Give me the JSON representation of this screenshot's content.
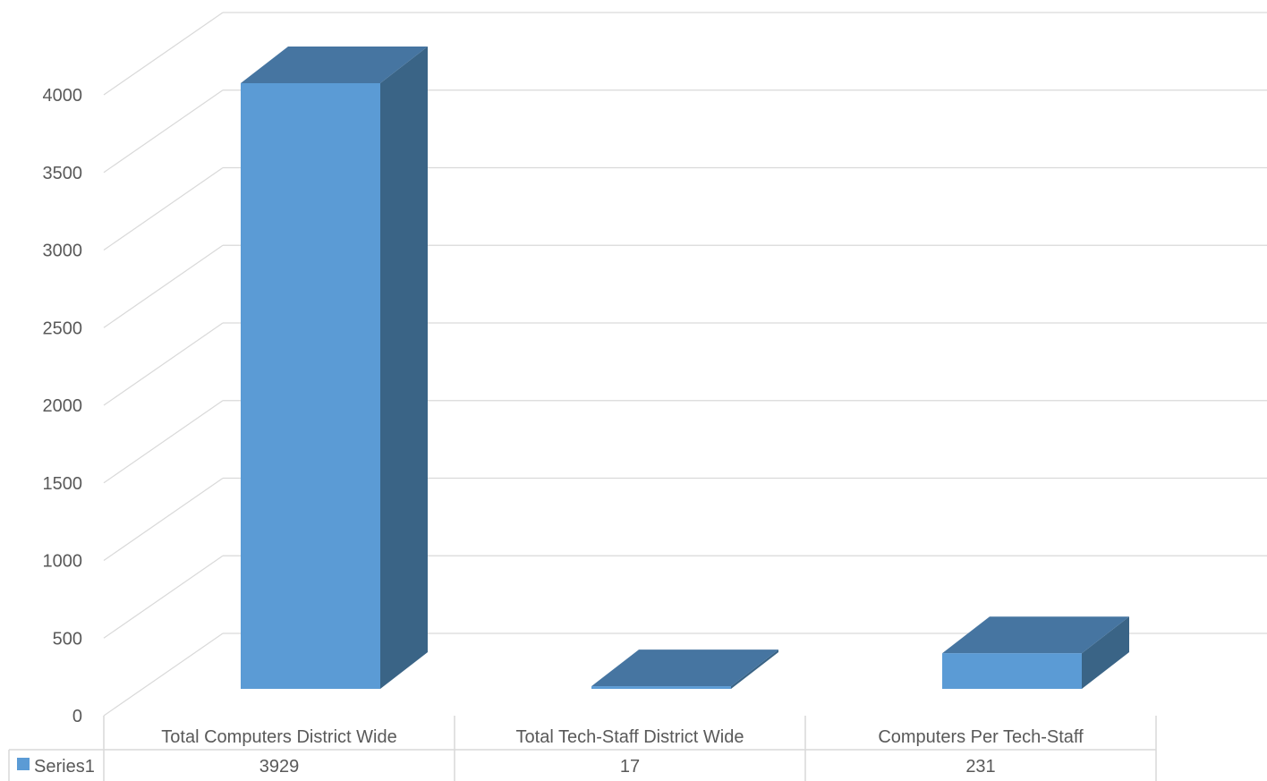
{
  "chart_data": {
    "type": "bar",
    "style": "3d-column-with-data-table",
    "categories": [
      "Total Computers District Wide",
      "Total Tech-Staff District Wide",
      "Computers Per Tech-Staff"
    ],
    "series": [
      {
        "name": "Series1",
        "values": [
          3929,
          17,
          231
        ],
        "color": "#5b9bd5"
      }
    ],
    "ylim": [
      0,
      4000
    ],
    "yticks": [
      0,
      500,
      1000,
      1500,
      2000,
      2500,
      3000,
      3500,
      4000
    ],
    "grid": true,
    "legend": "data-table-left",
    "colors": {
      "front": "#5b9bd5",
      "top": "#4675a1",
      "side": "#3a6486",
      "grid": "#d9d9d9",
      "text": "#595959"
    }
  }
}
